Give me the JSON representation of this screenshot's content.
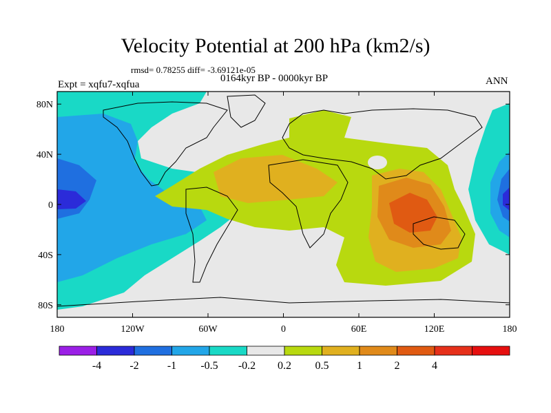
{
  "title": "Velocity Potential at 200 hPa (km2/s)",
  "stats": "rmsd= 0.78255 diff= -3.69121e-05",
  "period": "0164kyr BP - 0000kyr BP",
  "experiment": "Expt = xqfu7-xqfua",
  "season": "ANN",
  "map": {
    "lon_range": [
      -180,
      180
    ],
    "lat_range": [
      -90,
      90
    ],
    "lat_ticks": [
      {
        "value": 80,
        "label": "80N"
      },
      {
        "value": 40,
        "label": "40N"
      },
      {
        "value": 0,
        "label": "0"
      },
      {
        "value": -40,
        "label": "40S"
      },
      {
        "value": -80,
        "label": "80S"
      }
    ],
    "lon_ticks": [
      {
        "value": -180,
        "label": "180"
      },
      {
        "value": -120,
        "label": "120W"
      },
      {
        "value": -60,
        "label": "60W"
      },
      {
        "value": 0,
        "label": "0"
      },
      {
        "value": 60,
        "label": "60E"
      },
      {
        "value": 120,
        "label": "120E"
      },
      {
        "value": 180,
        "label": "180"
      }
    ]
  },
  "colorbar": {
    "colors": [
      "#9b1fe6",
      "#2b2bd9",
      "#1f6fe0",
      "#22a6e8",
      "#19d9c6",
      "#e8e8e8",
      "#b8d90f",
      "#e0b01f",
      "#e08a1a",
      "#e05a12",
      "#e6301a",
      "#e60f0f"
    ],
    "labels": [
      "-4",
      "-2",
      "-1",
      "-0.5",
      "-0.2",
      "0.2",
      "0.5",
      "1",
      "2",
      "4"
    ]
  }
}
